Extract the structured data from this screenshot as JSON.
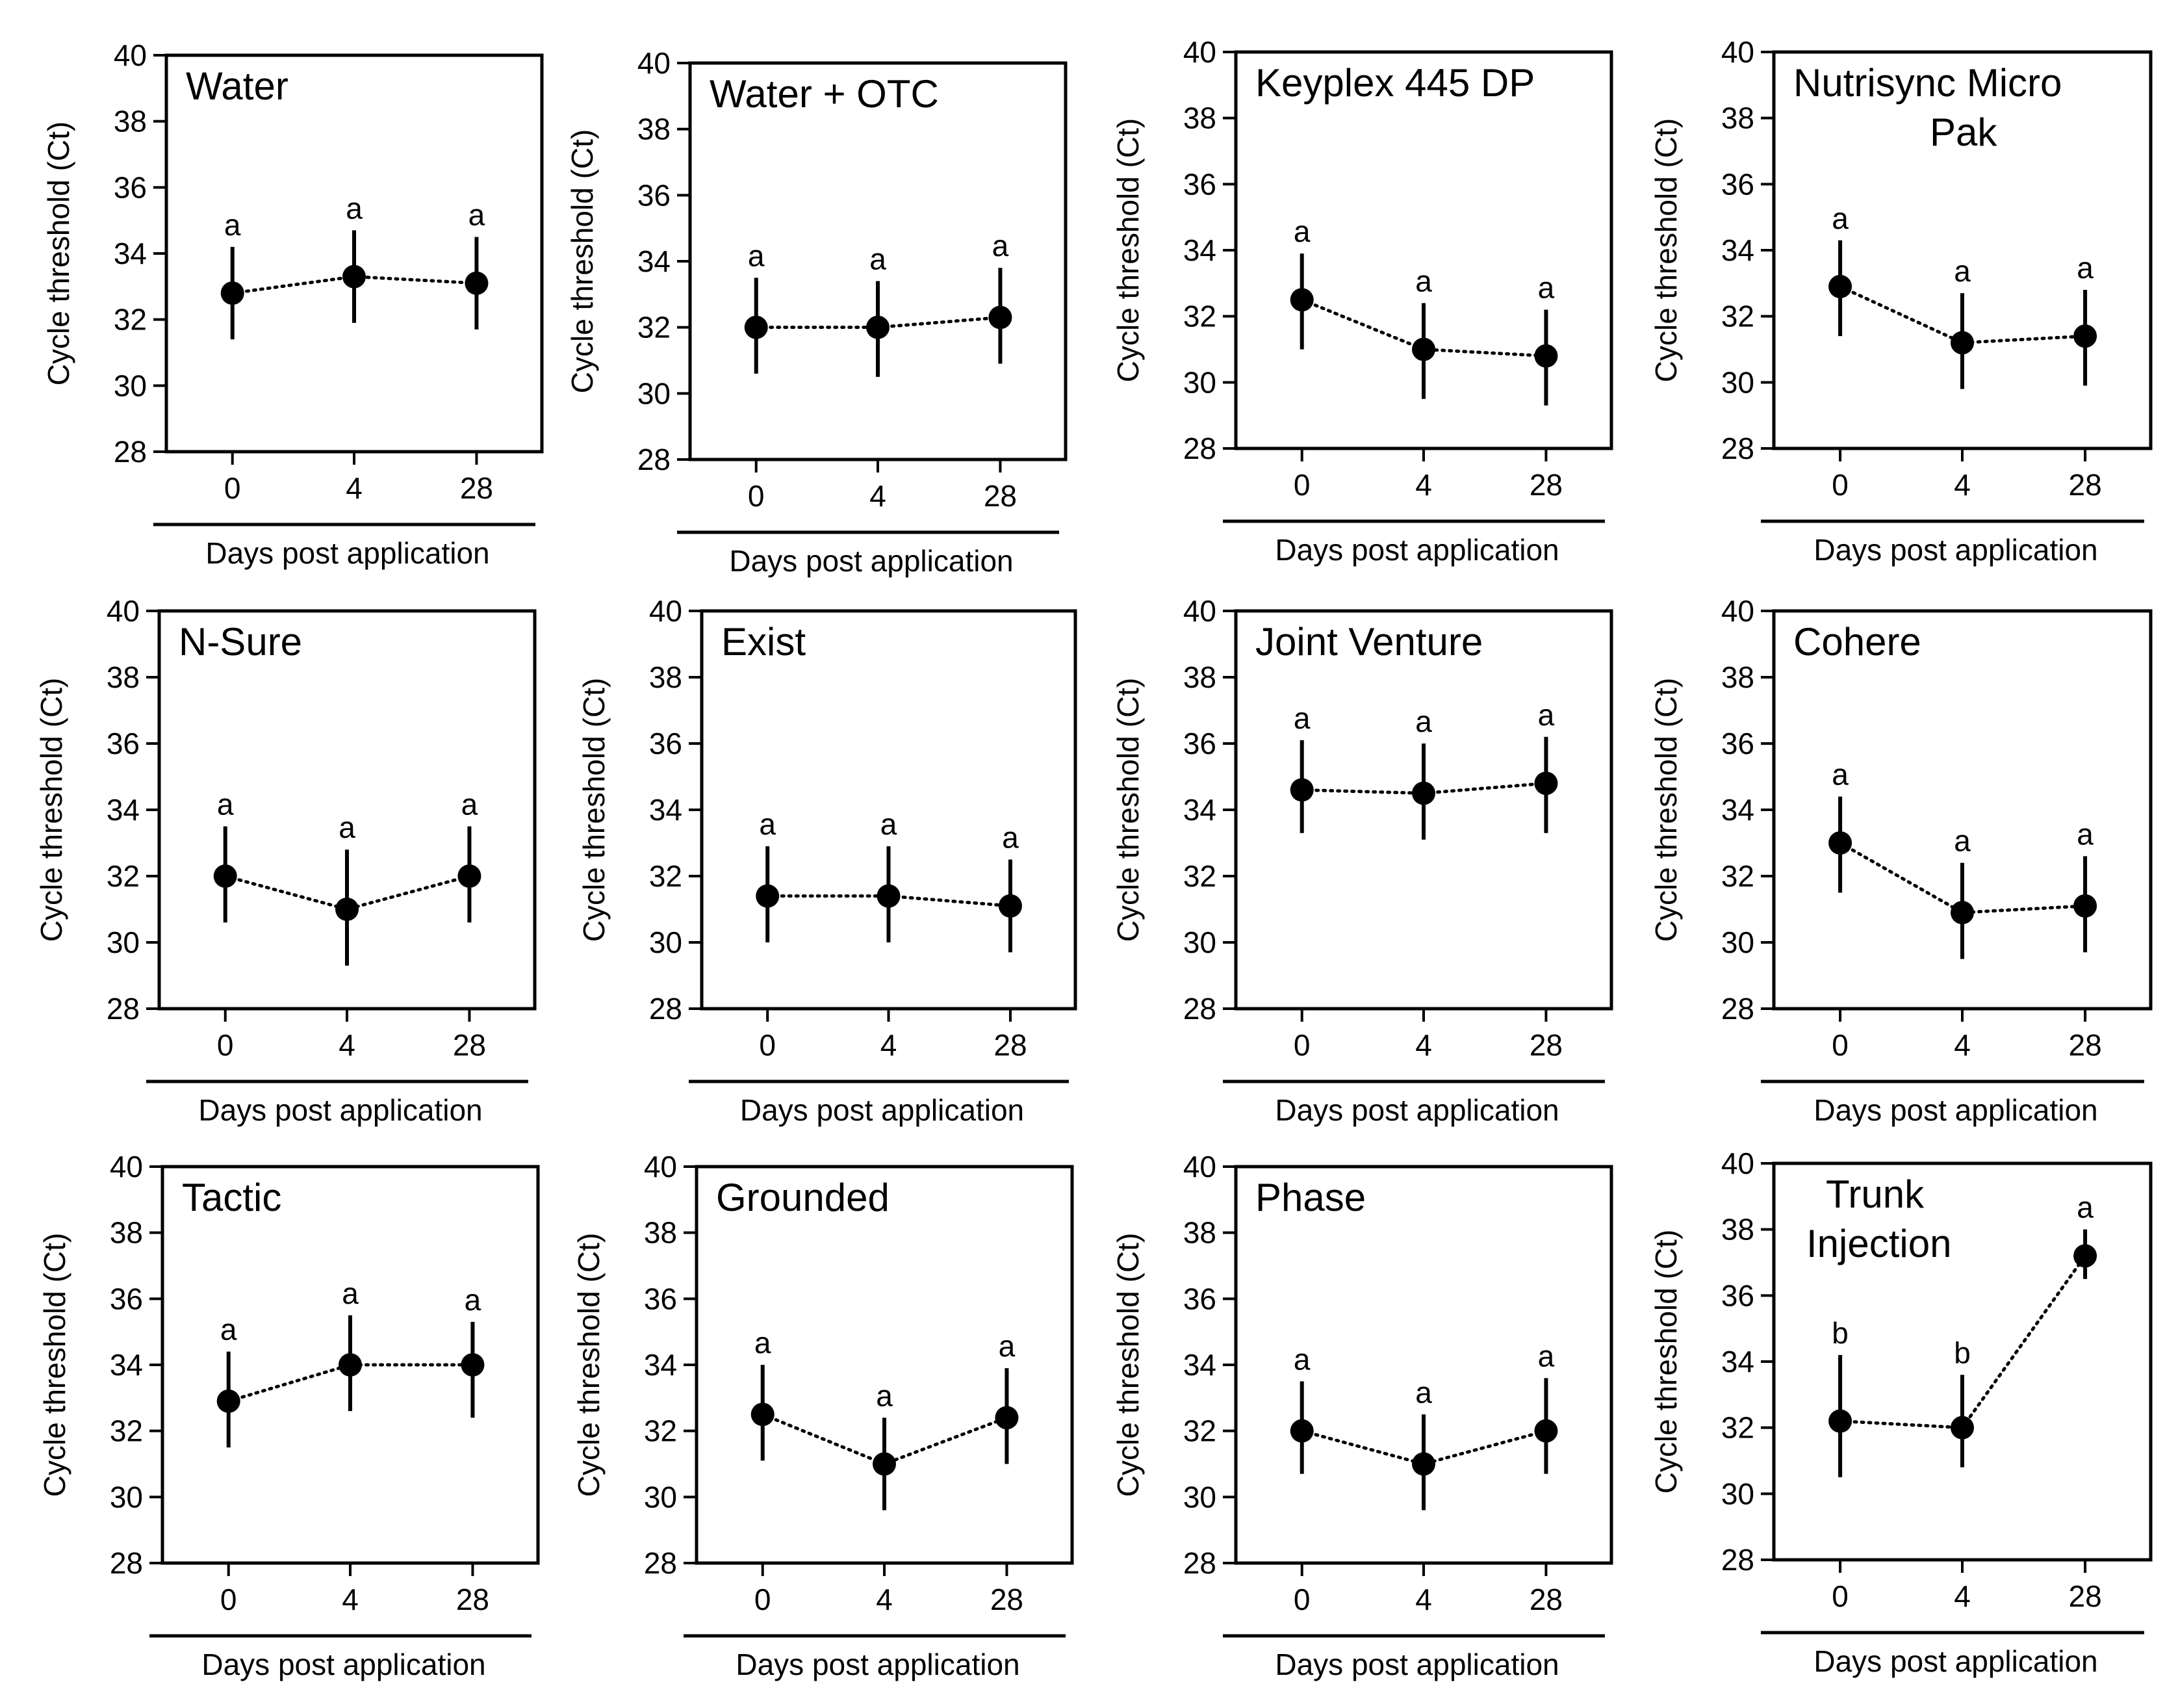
{
  "figure": {
    "ylabel": "Cycle threshold  (Ct)",
    "xlabel": "Days post application",
    "ylim": [
      28,
      40
    ],
    "yticks": [
      28,
      30,
      32,
      34,
      36,
      38,
      40
    ],
    "xcategories": [
      "0",
      "4",
      "28"
    ]
  },
  "chart_data": [
    {
      "type": "line",
      "title": [
        "Water"
      ],
      "categories": [
        "0",
        "4",
        "28"
      ],
      "values": [
        32.8,
        33.3,
        33.1
      ],
      "error": [
        [
          31.4,
          34.2
        ],
        [
          31.9,
          34.7
        ],
        [
          31.7,
          34.5
        ]
      ],
      "significance": [
        "a",
        "a",
        "a"
      ],
      "xlabel": "Days post application",
      "ylabel": "Cycle threshold  (Ct)",
      "ylim": [
        28,
        40
      ]
    },
    {
      "type": "line",
      "title": [
        "Water + OTC"
      ],
      "categories": [
        "0",
        "4",
        "28"
      ],
      "values": [
        32.0,
        32.0,
        32.3
      ],
      "error": [
        [
          30.6,
          33.5
        ],
        [
          30.5,
          33.4
        ],
        [
          30.9,
          33.8
        ]
      ],
      "significance": [
        "a",
        "a",
        "a"
      ],
      "xlabel": "Days post application",
      "ylabel": "Cycle threshold  (Ct)",
      "ylim": [
        28,
        40
      ]
    },
    {
      "type": "line",
      "title": [
        "Keyplex 445 DP"
      ],
      "categories": [
        "0",
        "4",
        "28"
      ],
      "values": [
        32.5,
        31.0,
        30.8
      ],
      "error": [
        [
          31.0,
          33.9
        ],
        [
          29.5,
          32.4
        ],
        [
          29.3,
          32.2
        ]
      ],
      "significance": [
        "a",
        "a",
        "a"
      ],
      "xlabel": "Days post application",
      "ylabel": "Cycle threshold  (Ct)",
      "ylim": [
        28,
        40
      ]
    },
    {
      "type": "line",
      "title": [
        "Nutrisync Micro",
        "Pak"
      ],
      "categories": [
        "0",
        "4",
        "28"
      ],
      "values": [
        32.9,
        31.2,
        31.4
      ],
      "error": [
        [
          31.4,
          34.3
        ],
        [
          29.8,
          32.7
        ],
        [
          29.9,
          32.8
        ]
      ],
      "significance": [
        "a",
        "a",
        "a"
      ],
      "xlabel": "Days post application",
      "ylabel": "Cycle threshold  (Ct)",
      "ylim": [
        28,
        40
      ]
    },
    {
      "type": "line",
      "title": [
        "N-Sure"
      ],
      "categories": [
        "0",
        "4",
        "28"
      ],
      "values": [
        32.0,
        31.0,
        32.0
      ],
      "error": [
        [
          30.6,
          33.5
        ],
        [
          29.3,
          32.8
        ],
        [
          30.6,
          33.5
        ]
      ],
      "significance": [
        "a",
        "a",
        "a"
      ],
      "xlabel": "Days post application",
      "ylabel": "Cycle threshold  (Ct)",
      "ylim": [
        28,
        40
      ]
    },
    {
      "type": "line",
      "title": [
        "Exist"
      ],
      "categories": [
        "0",
        "4",
        "28"
      ],
      "values": [
        31.4,
        31.4,
        31.1
      ],
      "error": [
        [
          30.0,
          32.9
        ],
        [
          30.0,
          32.9
        ],
        [
          29.7,
          32.5
        ]
      ],
      "significance": [
        "a",
        "a",
        "a"
      ],
      "xlabel": "Days post application",
      "ylabel": "Cycle threshold  (Ct)",
      "ylim": [
        28,
        40
      ]
    },
    {
      "type": "line",
      "title": [
        "Joint Venture"
      ],
      "categories": [
        "0",
        "4",
        "28"
      ],
      "values": [
        34.6,
        34.5,
        34.8
      ],
      "error": [
        [
          33.3,
          36.1
        ],
        [
          33.1,
          36.0
        ],
        [
          33.3,
          36.2
        ]
      ],
      "significance": [
        "a",
        "a",
        "a"
      ],
      "xlabel": "Days post application",
      "ylabel": "Cycle threshold  (Ct)",
      "ylim": [
        28,
        40
      ]
    },
    {
      "type": "line",
      "title": [
        "Cohere"
      ],
      "categories": [
        "0",
        "4",
        "28"
      ],
      "values": [
        33.0,
        30.9,
        31.1
      ],
      "error": [
        [
          31.5,
          34.4
        ],
        [
          29.5,
          32.4
        ],
        [
          29.7,
          32.6
        ]
      ],
      "significance": [
        "a",
        "a",
        "a"
      ],
      "xlabel": "Days post application",
      "ylabel": "Cycle threshold  (Ct)",
      "ylim": [
        28,
        40
      ]
    },
    {
      "type": "line",
      "title": [
        "Tactic"
      ],
      "categories": [
        "0",
        "4",
        "28"
      ],
      "values": [
        32.9,
        34.0,
        34.0
      ],
      "error": [
        [
          31.5,
          34.4
        ],
        [
          32.6,
          35.5
        ],
        [
          32.4,
          35.3
        ]
      ],
      "significance": [
        "a",
        "a",
        "a"
      ],
      "xlabel": "Days post application",
      "ylabel": "Cycle threshold  (Ct)",
      "ylim": [
        28,
        40
      ]
    },
    {
      "type": "line",
      "title": [
        "Grounded"
      ],
      "categories": [
        "0",
        "4",
        "28"
      ],
      "values": [
        32.5,
        31.0,
        32.4
      ],
      "error": [
        [
          31.1,
          34.0
        ],
        [
          29.6,
          32.4
        ],
        [
          31.0,
          33.9
        ]
      ],
      "significance": [
        "a",
        "a",
        "a"
      ],
      "xlabel": "Days post application",
      "ylabel": "Cycle threshold  (Ct)",
      "ylim": [
        28,
        40
      ]
    },
    {
      "type": "line",
      "title": [
        "Phase"
      ],
      "categories": [
        "0",
        "4",
        "28"
      ],
      "values": [
        32.0,
        31.0,
        32.0
      ],
      "error": [
        [
          30.7,
          33.5
        ],
        [
          29.6,
          32.5
        ],
        [
          30.7,
          33.6
        ]
      ],
      "significance": [
        "a",
        "a",
        "a"
      ],
      "xlabel": "Days post application",
      "ylabel": "Cycle threshold  (Ct)",
      "ylim": [
        28,
        40
      ]
    },
    {
      "type": "line",
      "title": [
        "Trunk",
        "Injection"
      ],
      "categories": [
        "0",
        "4",
        "28"
      ],
      "values": [
        32.2,
        32.0,
        37.2
      ],
      "error": [
        [
          30.5,
          34.2
        ],
        [
          30.8,
          33.6
        ],
        [
          36.5,
          38.0
        ]
      ],
      "significance": [
        "b",
        "b",
        "a"
      ],
      "xlabel": "Days post application",
      "ylabel": "Cycle threshold  (Ct)",
      "ylim": [
        28,
        40
      ]
    }
  ]
}
